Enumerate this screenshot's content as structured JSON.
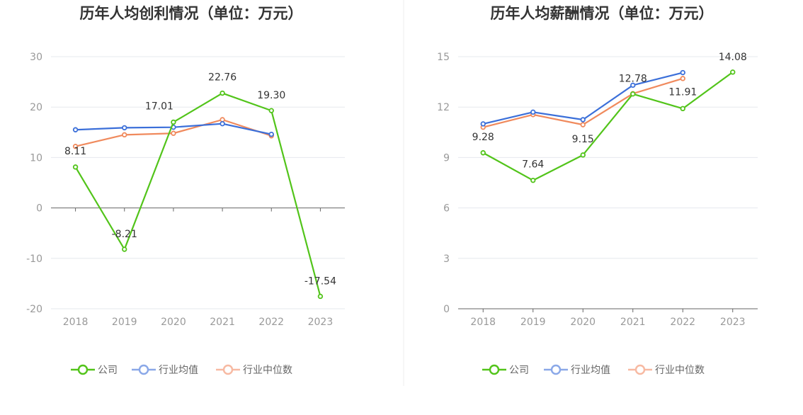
{
  "chart_data": [
    {
      "type": "line",
      "title": "历年人均创利情况（单位：万元）",
      "categories": [
        "2018",
        "2019",
        "2020",
        "2021",
        "2022",
        "2023"
      ],
      "ylim": [
        -20,
        30
      ],
      "yticks": [
        30,
        20,
        10,
        0,
        -10,
        -20
      ],
      "series": [
        {
          "name": "公司",
          "color": "#52c41a",
          "values": [
            8.11,
            -8.21,
            17.01,
            22.76,
            19.3,
            -17.54
          ],
          "labels": [
            "8.11",
            "-8.21",
            "17.01",
            "22.76",
            "19.30",
            "-17.54"
          ]
        },
        {
          "name": "行业均值",
          "color": "#3b6fd9",
          "values": [
            15.5,
            15.9,
            16.0,
            16.7,
            14.6,
            null
          ]
        },
        {
          "name": "行业中位数",
          "color": "#f08a5d",
          "values": [
            12.2,
            14.5,
            14.8,
            17.5,
            14.3,
            null
          ]
        }
      ],
      "legend": [
        "公司",
        "行业均值",
        "行业中位数"
      ]
    },
    {
      "type": "line",
      "title": "历年人均薪酬情况（单位：万元）",
      "categories": [
        "2018",
        "2019",
        "2020",
        "2021",
        "2022",
        "2023"
      ],
      "ylim": [
        0,
        15
      ],
      "yticks": [
        15,
        12,
        9,
        6,
        3,
        0
      ],
      "series": [
        {
          "name": "公司",
          "color": "#52c41a",
          "values": [
            9.28,
            7.64,
            9.15,
            12.78,
            11.91,
            14.08
          ],
          "labels": [
            "9.28",
            "7.64",
            "9.15",
            "12.78",
            "11.91",
            "14.08"
          ]
        },
        {
          "name": "行业均值",
          "color": "#3b6fd9",
          "values": [
            11.0,
            11.7,
            11.25,
            13.3,
            14.05,
            null
          ]
        },
        {
          "name": "行业中位数",
          "color": "#f08a5d",
          "values": [
            10.8,
            11.55,
            10.95,
            12.8,
            13.7,
            null
          ]
        }
      ],
      "legend": [
        "公司",
        "行业均值",
        "行业中位数"
      ]
    }
  ]
}
